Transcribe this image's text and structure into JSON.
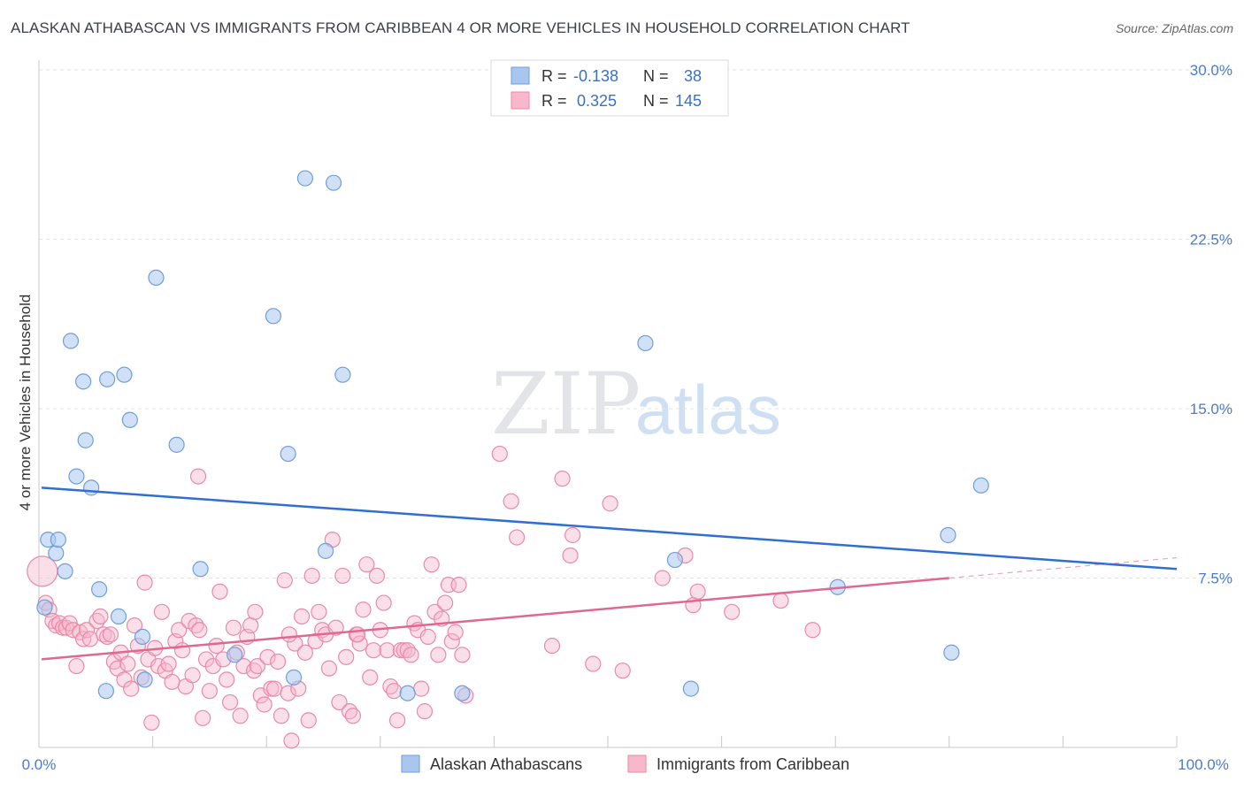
{
  "title": "ALASKAN ATHABASCAN VS IMMIGRANTS FROM CARIBBEAN 4 OR MORE VEHICLES IN HOUSEHOLD CORRELATION CHART",
  "source": "Source: ZipAtlas.com",
  "watermark": {
    "zip": "ZIP",
    "atlas": "atlas"
  },
  "legend_box": {
    "rows": [
      {
        "r_label": "R =",
        "r_value": "-0.138",
        "n_label": "N =",
        "n_value": "38",
        "color": "#a9c7ee",
        "stroke": "#6f9fd8"
      },
      {
        "r_label": "R =",
        "r_value": "0.325",
        "n_label": "N =",
        "n_value": "145",
        "color": "#f7b8cc",
        "stroke": "#e88aa8"
      }
    ]
  },
  "bottom_legend": [
    {
      "label": "Alaskan Athabascans",
      "color": "#a9c7ee",
      "stroke": "#6f9fd8"
    },
    {
      "label": "Immigrants from Caribbean",
      "color": "#f7b8cc",
      "stroke": "#e88aa8"
    }
  ],
  "chart_data": {
    "type": "scatter",
    "title": "ALASKAN ATHABASCAN VS IMMIGRANTS FROM CARIBBEAN 4 OR MORE VEHICLES IN HOUSEHOLD CORRELATION CHART",
    "xlabel": "",
    "ylabel": "4 or more Vehicles in Household",
    "xlim": [
      0,
      100
    ],
    "ylim": [
      0,
      30
    ],
    "x_tick_labels": [
      "0.0%",
      "100.0%"
    ],
    "y_ticks": [
      7.5,
      15.0,
      22.5,
      30.0
    ],
    "y_tick_labels": [
      "7.5%",
      "15.0%",
      "22.5%",
      "30.0%"
    ],
    "grid": true,
    "series": [
      {
        "name": "Alaskan Athabascans",
        "color": "#6f9fd8",
        "fill": "#a9c7ee",
        "trend": {
          "x": [
            0,
            100
          ],
          "y": [
            11.5,
            7.9
          ],
          "color": "#2f6fd0"
        },
        "points": [
          [
            0.5,
            6.2
          ],
          [
            0.8,
            9.2
          ],
          [
            1.5,
            8.6
          ],
          [
            1.7,
            9.2
          ],
          [
            2.3,
            7.8
          ],
          [
            2.8,
            18.0
          ],
          [
            3.3,
            12.0
          ],
          [
            3.9,
            16.2
          ],
          [
            4.1,
            13.6
          ],
          [
            4.6,
            11.5
          ],
          [
            5.3,
            7.0
          ],
          [
            6.0,
            16.3
          ],
          [
            5.9,
            2.5
          ],
          [
            7.0,
            5.8
          ],
          [
            7.5,
            16.5
          ],
          [
            8.0,
            14.5
          ],
          [
            9.3,
            3.0
          ],
          [
            9.1,
            4.9
          ],
          [
            10.3,
            20.8
          ],
          [
            12.1,
            13.4
          ],
          [
            14.2,
            7.9
          ],
          [
            17.2,
            4.1
          ],
          [
            20.6,
            19.1
          ],
          [
            21.9,
            13.0
          ],
          [
            22.4,
            3.1
          ],
          [
            23.4,
            25.2
          ],
          [
            25.2,
            8.7
          ],
          [
            25.9,
            25.0
          ],
          [
            26.7,
            16.5
          ],
          [
            32.4,
            2.4
          ],
          [
            37.2,
            2.4
          ],
          [
            55.9,
            8.3
          ],
          [
            53.3,
            17.9
          ],
          [
            57.3,
            2.6
          ],
          [
            70.2,
            7.1
          ],
          [
            79.9,
            9.4
          ],
          [
            80.2,
            4.2
          ],
          [
            82.8,
            11.6
          ]
        ]
      },
      {
        "name": "Immigrants from Caribbean",
        "color": "#e88aa8",
        "fill": "#f7b8cc",
        "trend": {
          "x": [
            0,
            80
          ],
          "y": [
            3.9,
            7.5
          ],
          "color": "#e06890"
        },
        "trend_extension": {
          "x": [
            80,
            100
          ],
          "y": [
            7.5,
            8.4
          ]
        },
        "points": [
          [
            0.3,
            7.8
          ],
          [
            0.6,
            6.4
          ],
          [
            0.9,
            6.1
          ],
          [
            1.2,
            5.6
          ],
          [
            1.5,
            5.4
          ],
          [
            1.8,
            5.5
          ],
          [
            2.1,
            5.3
          ],
          [
            2.4,
            5.3
          ],
          [
            2.7,
            5.5
          ],
          [
            3.0,
            5.2
          ],
          [
            3.3,
            3.6
          ],
          [
            3.6,
            5.1
          ],
          [
            3.9,
            4.8
          ],
          [
            4.2,
            5.2
          ],
          [
            4.5,
            4.8
          ],
          [
            5.1,
            5.6
          ],
          [
            5.4,
            5.8
          ],
          [
            5.7,
            5.0
          ],
          [
            6.0,
            4.9
          ],
          [
            6.3,
            5.0
          ],
          [
            6.6,
            3.8
          ],
          [
            6.9,
            3.5
          ],
          [
            7.2,
            4.2
          ],
          [
            7.5,
            3.0
          ],
          [
            7.8,
            3.7
          ],
          [
            8.1,
            2.6
          ],
          [
            8.4,
            5.4
          ],
          [
            8.7,
            4.5
          ],
          [
            9.0,
            3.1
          ],
          [
            9.3,
            7.3
          ],
          [
            9.6,
            3.9
          ],
          [
            9.9,
            1.1
          ],
          [
            10.2,
            4.4
          ],
          [
            10.5,
            3.6
          ],
          [
            10.8,
            6.0
          ],
          [
            11.1,
            3.4
          ],
          [
            11.4,
            3.7
          ],
          [
            11.7,
            2.9
          ],
          [
            12.0,
            4.7
          ],
          [
            12.3,
            5.2
          ],
          [
            12.6,
            4.3
          ],
          [
            12.9,
            2.7
          ],
          [
            13.2,
            5.6
          ],
          [
            13.5,
            3.2
          ],
          [
            13.8,
            5.4
          ],
          [
            14.1,
            5.2
          ],
          [
            14.4,
            1.3
          ],
          [
            14.7,
            3.9
          ],
          [
            15.0,
            2.5
          ],
          [
            15.3,
            3.6
          ],
          [
            15.6,
            4.5
          ],
          [
            15.9,
            6.9
          ],
          [
            16.2,
            3.9
          ],
          [
            16.5,
            3.0
          ],
          [
            16.8,
            2.0
          ],
          [
            17.1,
            5.3
          ],
          [
            17.4,
            4.2
          ],
          [
            17.7,
            1.4
          ],
          [
            18.0,
            3.6
          ],
          [
            18.3,
            4.9
          ],
          [
            18.6,
            5.4
          ],
          [
            18.9,
            3.4
          ],
          [
            19.2,
            3.6
          ],
          [
            19.5,
            2.3
          ],
          [
            19.8,
            1.9
          ],
          [
            20.1,
            4.0
          ],
          [
            20.4,
            2.6
          ],
          [
            20.7,
            2.6
          ],
          [
            21.0,
            3.8
          ],
          [
            21.3,
            1.4
          ],
          [
            21.6,
            7.4
          ],
          [
            21.9,
            2.4
          ],
          [
            22.2,
            0.3
          ],
          [
            22.5,
            4.6
          ],
          [
            22.8,
            2.6
          ],
          [
            23.1,
            5.8
          ],
          [
            23.4,
            4.2
          ],
          [
            23.7,
            1.2
          ],
          [
            24.0,
            7.6
          ],
          [
            24.3,
            4.7
          ],
          [
            24.6,
            6.0
          ],
          [
            24.9,
            5.2
          ],
          [
            25.2,
            5.0
          ],
          [
            25.5,
            3.5
          ],
          [
            25.8,
            9.2
          ],
          [
            26.1,
            5.3
          ],
          [
            26.4,
            2.0
          ],
          [
            26.7,
            7.6
          ],
          [
            27.0,
            4.0
          ],
          [
            27.3,
            1.6
          ],
          [
            27.6,
            1.4
          ],
          [
            27.9,
            5.0
          ],
          [
            28.2,
            4.6
          ],
          [
            28.5,
            6.1
          ],
          [
            28.8,
            8.1
          ],
          [
            29.1,
            3.1
          ],
          [
            29.4,
            4.3
          ],
          [
            29.7,
            7.6
          ],
          [
            30.0,
            5.2
          ],
          [
            30.3,
            6.4
          ],
          [
            30.6,
            4.3
          ],
          [
            30.9,
            2.7
          ],
          [
            31.2,
            2.5
          ],
          [
            31.5,
            1.2
          ],
          [
            31.8,
            4.3
          ],
          [
            32.1,
            4.3
          ],
          [
            32.4,
            4.3
          ],
          [
            32.7,
            4.1
          ],
          [
            33.0,
            5.5
          ],
          [
            33.3,
            5.2
          ],
          [
            33.6,
            2.6
          ],
          [
            33.9,
            1.6
          ],
          [
            34.2,
            4.9
          ],
          [
            34.5,
            8.1
          ],
          [
            34.8,
            6.0
          ],
          [
            35.1,
            4.1
          ],
          [
            35.4,
            5.7
          ],
          [
            35.7,
            6.4
          ],
          [
            36.0,
            7.2
          ],
          [
            36.3,
            4.7
          ],
          [
            36.6,
            5.1
          ],
          [
            36.9,
            7.2
          ],
          [
            37.2,
            4.1
          ],
          [
            37.5,
            2.3
          ],
          [
            14.0,
            12.0
          ],
          [
            40.5,
            13.0
          ],
          [
            41.5,
            10.9
          ],
          [
            42.0,
            9.3
          ],
          [
            45.1,
            4.5
          ],
          [
            46.0,
            11.9
          ],
          [
            46.7,
            8.5
          ],
          [
            46.9,
            9.4
          ],
          [
            48.7,
            3.7
          ],
          [
            50.2,
            10.8
          ],
          [
            51.3,
            3.4
          ],
          [
            54.8,
            7.5
          ],
          [
            56.8,
            8.5
          ],
          [
            57.5,
            6.3
          ],
          [
            57.9,
            6.9
          ],
          [
            60.9,
            6.0
          ],
          [
            65.2,
            6.5
          ],
          [
            68.0,
            5.2
          ],
          [
            28.0,
            5.0
          ],
          [
            19.0,
            6.0
          ],
          [
            22.0,
            5.0
          ]
        ]
      }
    ]
  }
}
